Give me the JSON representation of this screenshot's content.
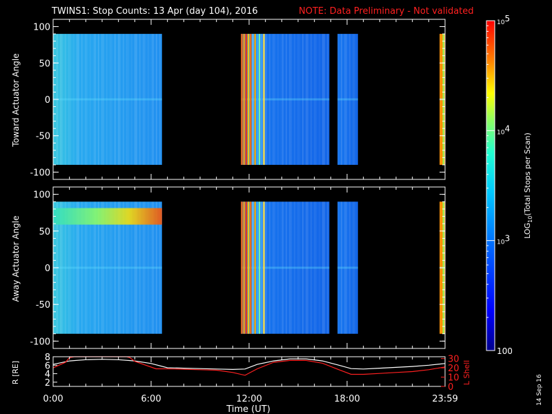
{
  "title_main": "TWINS1: Stop Counts: 13 Apr (day 104), 2016",
  "title_note": "NOTE: Data Preliminary - Not validated",
  "date_stamp": "14 Sep 16",
  "colors": {
    "background": "#000000",
    "note": "#ff2020",
    "lshell_line": "#ff2020",
    "r_line": "#ffffff"
  },
  "chart_data": [
    {
      "type": "heatmap",
      "panel": "toward",
      "ylabel": "Toward Actuator Angle",
      "ylim": [
        -110,
        110
      ],
      "yticks": [
        "100",
        "50",
        "0",
        "-50",
        "-100"
      ],
      "xlim_hours": [
        0,
        24
      ],
      "data_y_range": [
        -90,
        90
      ],
      "segments": [
        {
          "start": "0:00",
          "end": "6:40",
          "level": "mid-low"
        },
        {
          "start": "11:30",
          "end": "16:55",
          "level": "low"
        },
        {
          "start": "17:25",
          "end": "18:40",
          "level": "low"
        },
        {
          "start": "23:40",
          "end": "23:59",
          "level": "high"
        }
      ]
    },
    {
      "type": "heatmap",
      "panel": "away",
      "ylabel": "Away Actuator Angle",
      "ylim": [
        -110,
        110
      ],
      "yticks": [
        "100",
        "50",
        "0",
        "-50",
        "-100"
      ],
      "xlim_hours": [
        0,
        24
      ],
      "data_y_range": [
        -90,
        90
      ],
      "segments": [
        {
          "start": "0:00",
          "end": "6:40",
          "level": "mid-low",
          "enhanced_band_angle": 70
        },
        {
          "start": "11:30",
          "end": "16:55",
          "level": "low"
        },
        {
          "start": "17:25",
          "end": "18:40",
          "level": "low"
        },
        {
          "start": "23:40",
          "end": "23:59",
          "level": "high"
        }
      ]
    },
    {
      "type": "line",
      "panel": "orbit",
      "ylabel_left": "R [RE]",
      "ylabel_right": "L Shell",
      "yticks_left": [
        "8",
        "6",
        "4",
        "2"
      ],
      "yticks_right": [
        "30",
        "20",
        "10",
        "0"
      ],
      "ylim_left": [
        1,
        8
      ],
      "ylim_right": [
        0,
        32
      ],
      "xlabel": "Time (UT)",
      "xticks": [
        "0:00",
        "6:00",
        "12:00",
        "18:00",
        "23:59"
      ],
      "xtick_hours": [
        0,
        6,
        12,
        18,
        24
      ],
      "series": [
        {
          "name": "R",
          "x_hours": [
            0,
            1,
            2,
            3,
            4,
            5,
            6,
            7,
            8,
            9,
            10,
            11,
            11.75,
            12.5,
            13.5,
            14.5,
            15.5,
            16.5,
            17.5,
            18.25,
            19,
            20,
            21,
            22,
            23,
            24
          ],
          "y": [
            6.2,
            7.0,
            7.3,
            7.4,
            7.3,
            7.0,
            6.4,
            5.4,
            5.3,
            5.2,
            5.1,
            5.0,
            5.1,
            6.2,
            7.0,
            7.5,
            7.5,
            7.0,
            6.0,
            5.2,
            5.1,
            5.3,
            5.5,
            5.7,
            6.0,
            6.4
          ]
        },
        {
          "name": "L Shell",
          "x_hours": [
            0,
            0.75,
            1.0,
            1.3,
            4.5,
            4.7,
            5.0,
            6.3,
            7,
            8,
            9,
            10,
            11,
            11.75,
            12.5,
            13.5,
            14.5,
            15.5,
            16.5,
            17.5,
            18.25,
            19,
            20,
            21,
            22,
            23,
            24
          ],
          "y": [
            20,
            26,
            31,
            32,
            32,
            31,
            27,
            19,
            19,
            18.5,
            18,
            17.5,
            15,
            12,
            19,
            26,
            28,
            28,
            25,
            18,
            13,
            13,
            14,
            15,
            16,
            18,
            21
          ]
        }
      ]
    }
  ],
  "colorbar": {
    "label": "LOG10(Total Stops per Scan)",
    "ticks": [
      "10^5",
      "10^4",
      "10^3",
      "100"
    ],
    "tick_values": [
      100000,
      10000,
      1000,
      100
    ]
  }
}
